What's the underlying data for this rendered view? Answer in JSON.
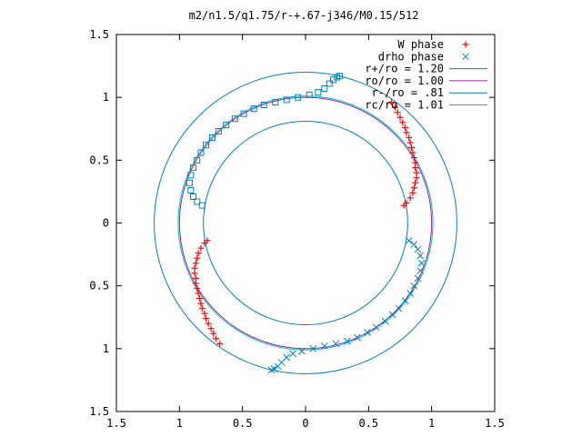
{
  "chart_data": {
    "type": "scatter",
    "title": "m2/n1.5/q1.75/r-+.67-j346/M0.15/512",
    "xlim": [
      -1.5,
      1.5
    ],
    "ylim": [
      -1.5,
      1.5
    ],
    "x_ticks": [
      -1.5,
      -1,
      -0.5,
      0,
      0.5,
      1,
      1.5
    ],
    "y_ticks": [
      -1.5,
      -1,
      -0.5,
      0,
      0.5,
      1,
      1.5
    ],
    "x_tick_labels": [
      "1.5",
      "1",
      "0.5",
      "0",
      "0.5",
      "1",
      "1.5"
    ],
    "y_tick_labels": [
      "1.5",
      "1",
      "0.5",
      "0",
      "0.5",
      "1",
      "1.5"
    ],
    "grid": false,
    "legend_position": "top-right",
    "series": [
      {
        "name": "W phase",
        "marker": "plus",
        "color": "#ff0000",
        "points": [
          [
            0.68,
            0.96
          ],
          [
            0.71,
            0.92
          ],
          [
            0.73,
            0.88
          ],
          [
            0.75,
            0.84
          ],
          [
            0.77,
            0.8
          ],
          [
            0.79,
            0.76
          ],
          [
            0.8,
            0.72
          ],
          [
            0.82,
            0.68
          ],
          [
            0.83,
            0.64
          ],
          [
            0.84,
            0.6
          ],
          [
            0.85,
            0.56
          ],
          [
            0.86,
            0.52
          ],
          [
            0.87,
            0.48
          ],
          [
            0.87,
            0.44
          ],
          [
            0.88,
            0.4
          ],
          [
            0.88,
            0.36
          ],
          [
            0.87,
            0.32
          ],
          [
            0.86,
            0.28
          ],
          [
            0.85,
            0.24
          ],
          [
            0.83,
            0.2
          ],
          [
            0.8,
            0.16
          ],
          [
            0.78,
            0.14
          ],
          [
            -0.68,
            -0.96
          ],
          [
            -0.71,
            -0.92
          ],
          [
            -0.73,
            -0.88
          ],
          [
            -0.75,
            -0.84
          ],
          [
            -0.77,
            -0.8
          ],
          [
            -0.79,
            -0.76
          ],
          [
            -0.8,
            -0.72
          ],
          [
            -0.82,
            -0.68
          ],
          [
            -0.83,
            -0.64
          ],
          [
            -0.84,
            -0.6
          ],
          [
            -0.85,
            -0.56
          ],
          [
            -0.86,
            -0.52
          ],
          [
            -0.87,
            -0.48
          ],
          [
            -0.87,
            -0.44
          ],
          [
            -0.88,
            -0.4
          ],
          [
            -0.88,
            -0.36
          ],
          [
            -0.87,
            -0.32
          ],
          [
            -0.86,
            -0.28
          ],
          [
            -0.85,
            -0.24
          ],
          [
            -0.83,
            -0.2
          ],
          [
            -0.8,
            -0.16
          ],
          [
            -0.78,
            -0.14
          ]
        ]
      },
      {
        "name": "drho phase",
        "marker": "cross",
        "color": "#0080c0",
        "points": [
          [
            0.82,
            -0.14
          ],
          [
            0.86,
            -0.17
          ],
          [
            0.89,
            -0.21
          ],
          [
            0.91,
            -0.26
          ],
          [
            0.92,
            -0.32
          ],
          [
            0.91,
            -0.38
          ],
          [
            0.89,
            -0.44
          ],
          [
            0.86,
            -0.5
          ],
          [
            0.83,
            -0.56
          ],
          [
            0.79,
            -0.62
          ],
          [
            0.74,
            -0.68
          ],
          [
            0.69,
            -0.73
          ],
          [
            0.63,
            -0.78
          ],
          [
            0.56,
            -0.83
          ],
          [
            0.49,
            -0.87
          ],
          [
            0.41,
            -0.91
          ],
          [
            0.33,
            -0.94
          ],
          [
            0.24,
            -0.96
          ],
          [
            0.15,
            -0.98
          ],
          [
            0.06,
            -1.0
          ],
          [
            -0.03,
            -1.02
          ],
          [
            -0.1,
            -1.04
          ],
          [
            -0.15,
            -1.07
          ],
          [
            -0.19,
            -1.11
          ],
          [
            -0.22,
            -1.14
          ],
          [
            -0.25,
            -1.16
          ],
          [
            -0.27,
            -1.17
          ]
        ]
      },
      {
        "name": "drho phase (squares)",
        "legend": false,
        "marker": "square",
        "color": "#0080c0",
        "points": [
          [
            -0.82,
            0.14
          ],
          [
            -0.86,
            0.17
          ],
          [
            -0.89,
            0.21
          ],
          [
            -0.91,
            0.26
          ],
          [
            -0.92,
            0.32
          ],
          [
            -0.91,
            0.38
          ],
          [
            -0.89,
            0.44
          ],
          [
            -0.86,
            0.5
          ],
          [
            -0.83,
            0.56
          ],
          [
            -0.79,
            0.62
          ],
          [
            -0.74,
            0.68
          ],
          [
            -0.69,
            0.73
          ],
          [
            -0.63,
            0.78
          ],
          [
            -0.56,
            0.83
          ],
          [
            -0.49,
            0.87
          ],
          [
            -0.41,
            0.91
          ],
          [
            -0.33,
            0.94
          ],
          [
            -0.24,
            0.96
          ],
          [
            -0.15,
            0.98
          ],
          [
            -0.06,
            1.0
          ],
          [
            0.03,
            1.02
          ],
          [
            0.1,
            1.04
          ],
          [
            0.15,
            1.07
          ],
          [
            0.19,
            1.11
          ],
          [
            0.22,
            1.14
          ],
          [
            0.25,
            1.16
          ],
          [
            0.27,
            1.17
          ]
        ]
      }
    ],
    "circles": [
      {
        "label": "r+/ro = 1.20",
        "radius": 1.2,
        "color": "#0080c0"
      },
      {
        "label": "ro/ro = 1.00",
        "radius": 1.0,
        "color": "#a020a0"
      },
      {
        "label": "r-/ro = .81",
        "radius": 0.81,
        "color": "#0080c0"
      },
      {
        "label": "rc/ro = 1.01",
        "radius": 1.01,
        "color": "#00c0c0"
      }
    ]
  }
}
